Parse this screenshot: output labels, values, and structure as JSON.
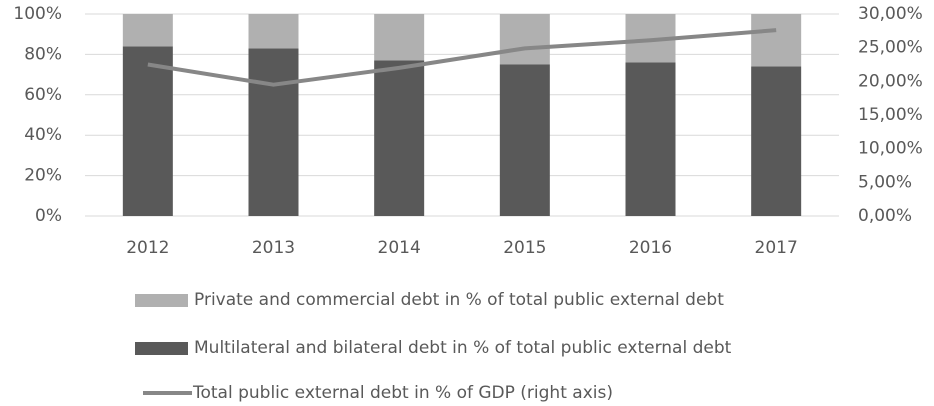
{
  "chart_data": {
    "type": "bar",
    "categories": [
      "2012",
      "2013",
      "2014",
      "2015",
      "2016",
      "2017"
    ],
    "series": [
      {
        "name": "Private and commercial debt in % of total public external debt",
        "type": "bar",
        "color": "#b0b0b0",
        "values": [
          16,
          17,
          23,
          25,
          24,
          26
        ]
      },
      {
        "name": "Multilateral and bilateral debt in % of total public external debt",
        "type": "bar",
        "color": "#595959",
        "values": [
          84,
          83,
          77,
          75,
          76,
          74
        ]
      },
      {
        "name": "Total public external debt in % of GDP (right axis)",
        "type": "line",
        "axis": "y2",
        "color": "#878787",
        "values": [
          22.5,
          19.5,
          22.0,
          24.9,
          26.1,
          27.6
        ]
      }
    ],
    "ylim": [
      0,
      100
    ],
    "yticks": [
      {
        "value": 0,
        "label": "0%"
      },
      {
        "value": 20,
        "label": "20%"
      },
      {
        "value": 40,
        "label": "40%"
      },
      {
        "value": 60,
        "label": "60%"
      },
      {
        "value": 80,
        "label": "80%"
      },
      {
        "value": 100,
        "label": "100%"
      }
    ],
    "y2lim": [
      0,
      30
    ],
    "y2ticks": [
      {
        "value": 0,
        "label": "0,00%"
      },
      {
        "value": 5,
        "label": "5,00%"
      },
      {
        "value": 10,
        "label": "10,00%"
      },
      {
        "value": 15,
        "label": "15,00%"
      },
      {
        "value": 20,
        "label": "20,00%"
      },
      {
        "value": 25,
        "label": "25,00%"
      },
      {
        "value": 30,
        "label": "30,00%"
      }
    ],
    "grid": true,
    "legend": "bottom"
  }
}
